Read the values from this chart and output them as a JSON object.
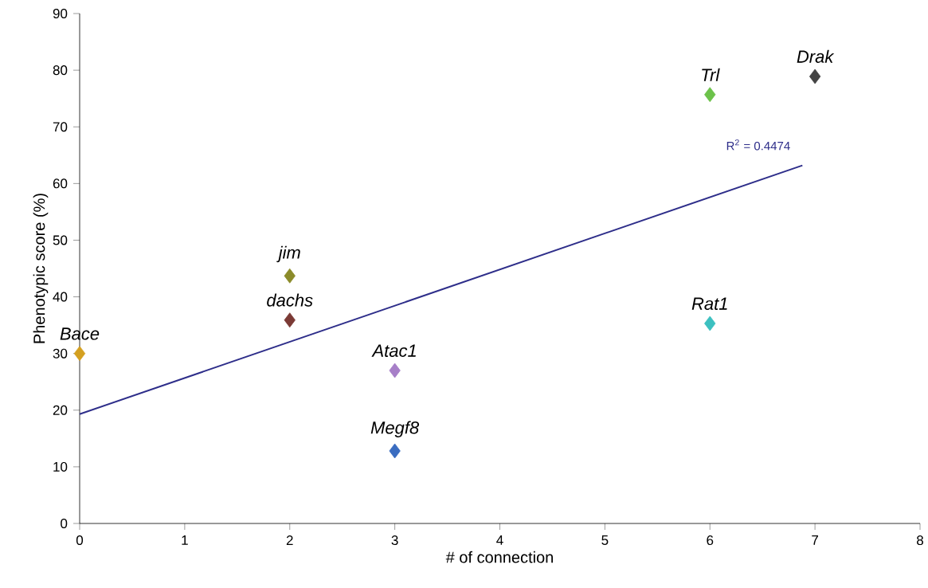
{
  "chart_data": {
    "type": "scatter",
    "xlabel": "# of connection",
    "ylabel": "Phenotypic score (%)",
    "xlim": [
      0,
      8
    ],
    "ylim": [
      0,
      90
    ],
    "xticks": [
      0,
      1,
      2,
      3,
      4,
      5,
      6,
      7,
      8
    ],
    "yticks": [
      0,
      10,
      20,
      30,
      40,
      50,
      60,
      70,
      80,
      90
    ],
    "grid": false,
    "marker": "diamond",
    "series": [
      {
        "name": "*Bace*",
        "color": "#d4a020",
        "x": [
          0
        ],
        "values": [
          30
        ]
      },
      {
        "name": "*jim*",
        "color": "#8b8b2a",
        "x": [
          2
        ],
        "values": [
          43.7
        ]
      },
      {
        "name": "*dachs*",
        "color": "#7b3a35",
        "x": [
          2
        ],
        "values": [
          35.9
        ]
      },
      {
        "name": "*Atac1*",
        "color": "#a77fc8",
        "x": [
          3
        ],
        "values": [
          27
        ]
      },
      {
        "name": "*Megf8*",
        "color": "#3a6cc0",
        "x": [
          3
        ],
        "values": [
          12.8
        ]
      },
      {
        "name": "*Trl*",
        "color": "#6cc24a",
        "x": [
          6
        ],
        "values": [
          75.7
        ]
      },
      {
        "name": "*Rat1*",
        "color": "#3cc0c0",
        "x": [
          6
        ],
        "values": [
          35.3
        ]
      },
      {
        "name": "*Drak*",
        "color": "#444444",
        "x": [
          7
        ],
        "values": [
          78.9
        ]
      },
      {
        "type": "line",
        "color": "#2e2e8a",
        "x": [
          0,
          6.88
        ],
        "values": [
          19.3,
          63.2
        ],
        "marker": "none"
      }
    ],
    "annotations": [
      "R$^{2}$ = 0.4474"
    ]
  }
}
